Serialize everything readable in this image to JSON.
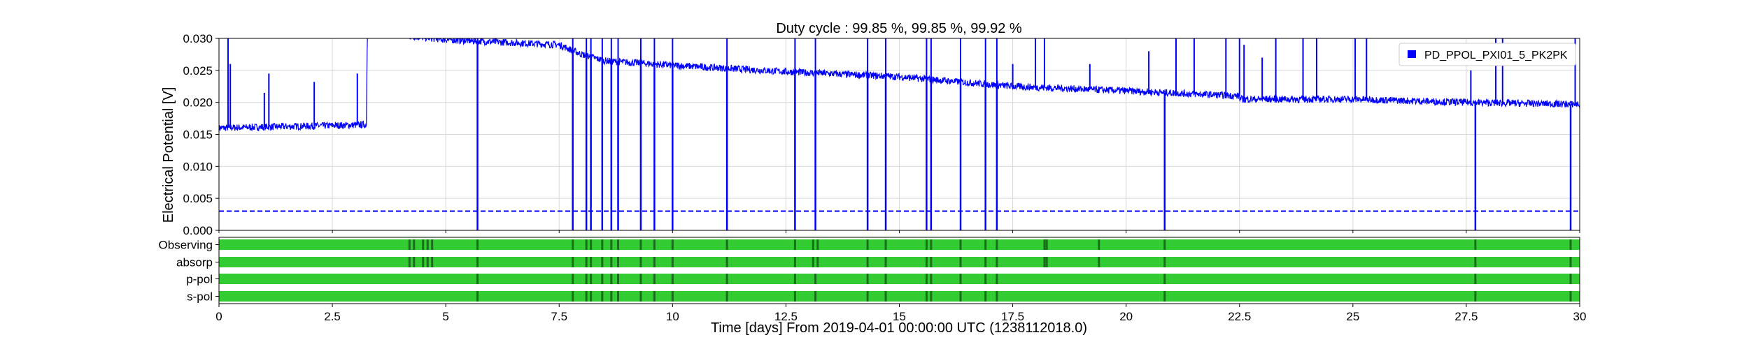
{
  "chart_data": {
    "type": "line",
    "title": "Duty cycle : 99.85 %, 99.85 %, 99.92 %",
    "xlabel": "Time [days] From 2019-04-01 00:00:00 UTC (1238112018.0)",
    "ylabel": "Electrical Potential [V]",
    "xlim": [
      0,
      30
    ],
    "ylim": [
      0,
      0.03
    ],
    "xticks": [
      "0",
      "2.5",
      "5",
      "7.5",
      "10",
      "12.5",
      "15",
      "17.5",
      "20",
      "22.5",
      "25",
      "27.5",
      "30"
    ],
    "yticks": [
      "0.000",
      "0.005",
      "0.010",
      "0.015",
      "0.020",
      "0.025",
      "0.030"
    ],
    "grid": true,
    "legend_position": "top-right",
    "series": [
      {
        "name": "PD_PPOL_PXI01_5_PK2PK",
        "color": "#0000ff",
        "baseline": [
          [
            0,
            0.016
          ],
          [
            3.25,
            0.0165
          ],
          [
            3.27,
            0.031
          ],
          [
            5.0,
            0.0298
          ],
          [
            7.5,
            0.029
          ],
          [
            8.0,
            0.0275
          ],
          [
            8.5,
            0.0265
          ],
          [
            10,
            0.0258
          ],
          [
            12.5,
            0.0248
          ],
          [
            15,
            0.024
          ],
          [
            17.5,
            0.0225
          ],
          [
            20,
            0.0218
          ],
          [
            22.5,
            0.021
          ],
          [
            22.51,
            0.0205
          ],
          [
            25,
            0.0205
          ],
          [
            27.5,
            0.02
          ],
          [
            30,
            0.0197
          ]
        ],
        "threshold": 0.003,
        "dropouts": [
          5.7,
          7.8,
          8.1,
          8.2,
          8.45,
          8.65,
          8.8,
          9.3,
          9.6,
          10.0,
          11.2,
          12.7,
          13.15,
          14.3,
          14.7,
          15.6,
          15.7,
          16.35,
          16.9,
          17.15,
          20.85,
          27.7,
          29.8
        ],
        "spikes": [
          [
            0.2,
            0.03
          ],
          [
            0.25,
            0.026
          ],
          [
            1.0,
            0.0215
          ],
          [
            1.1,
            0.0245
          ],
          [
            2.1,
            0.0232
          ],
          [
            3.05,
            0.0245
          ],
          [
            5.7,
            0.03
          ],
          [
            7.8,
            0.03
          ],
          [
            8.1,
            0.03
          ],
          [
            8.2,
            0.03
          ],
          [
            8.45,
            0.03
          ],
          [
            8.65,
            0.03
          ],
          [
            8.8,
            0.03
          ],
          [
            9.3,
            0.03
          ],
          [
            9.6,
            0.03
          ],
          [
            10.0,
            0.03
          ],
          [
            11.2,
            0.03
          ],
          [
            12.7,
            0.03
          ],
          [
            13.15,
            0.03
          ],
          [
            14.3,
            0.03
          ],
          [
            14.7,
            0.03
          ],
          [
            15.6,
            0.03
          ],
          [
            15.7,
            0.03
          ],
          [
            16.35,
            0.03
          ],
          [
            16.9,
            0.03
          ],
          [
            17.15,
            0.03
          ],
          [
            17.5,
            0.026
          ],
          [
            18.0,
            0.03
          ],
          [
            18.2,
            0.03
          ],
          [
            19.2,
            0.026
          ],
          [
            20.5,
            0.028
          ],
          [
            21.1,
            0.03
          ],
          [
            21.5,
            0.03
          ],
          [
            22.2,
            0.03
          ],
          [
            22.5,
            0.03
          ],
          [
            22.6,
            0.029
          ],
          [
            23.0,
            0.027
          ],
          [
            23.3,
            0.03
          ],
          [
            23.9,
            0.03
          ],
          [
            24.2,
            0.03
          ],
          [
            25.05,
            0.03
          ],
          [
            25.3,
            0.03
          ],
          [
            27.6,
            0.025
          ],
          [
            28.15,
            0.03
          ],
          [
            28.3,
            0.03
          ],
          [
            29.9,
            0.03
          ]
        ]
      }
    ],
    "segment_rows": [
      {
        "label": "Observing",
        "gaps": [
          4.2,
          4.3,
          4.5,
          4.6,
          4.7,
          5.7,
          7.8,
          8.1,
          8.2,
          8.45,
          8.65,
          8.8,
          9.3,
          9.6,
          10.0,
          11.2,
          12.7,
          13.1,
          13.2,
          14.3,
          14.7,
          15.6,
          15.7,
          16.35,
          16.9,
          17.15,
          18.2,
          18.25,
          19.4,
          20.85,
          27.7,
          29.8
        ]
      },
      {
        "label": "absorp",
        "gaps": [
          4.2,
          4.3,
          4.5,
          4.6,
          4.7,
          5.7,
          7.8,
          8.1,
          8.2,
          8.45,
          8.65,
          8.8,
          9.3,
          9.6,
          10.0,
          11.2,
          12.7,
          13.1,
          13.2,
          14.3,
          14.7,
          15.6,
          15.7,
          16.35,
          16.9,
          17.15,
          18.2,
          18.25,
          19.4,
          20.85,
          27.7,
          29.8
        ]
      },
      {
        "label": "p-pol",
        "gaps": [
          5.7,
          7.8,
          8.1,
          8.2,
          8.45,
          8.65,
          8.8,
          9.3,
          9.6,
          10.0,
          11.2,
          12.7,
          13.15,
          14.3,
          14.7,
          15.6,
          15.7,
          16.35,
          16.9,
          17.15,
          20.85,
          27.7,
          29.8
        ]
      },
      {
        "label": "s-pol",
        "gaps": [
          5.7,
          7.8,
          8.1,
          8.2,
          8.45,
          8.65,
          8.8,
          9.3,
          9.6,
          10.0,
          11.2,
          12.7,
          13.15,
          14.3,
          14.7,
          15.6,
          15.7,
          16.35,
          16.9,
          17.15,
          20.85,
          27.7,
          29.8
        ]
      }
    ],
    "segment_color": "#33cc33",
    "gap_color": "#1a6e1a"
  }
}
